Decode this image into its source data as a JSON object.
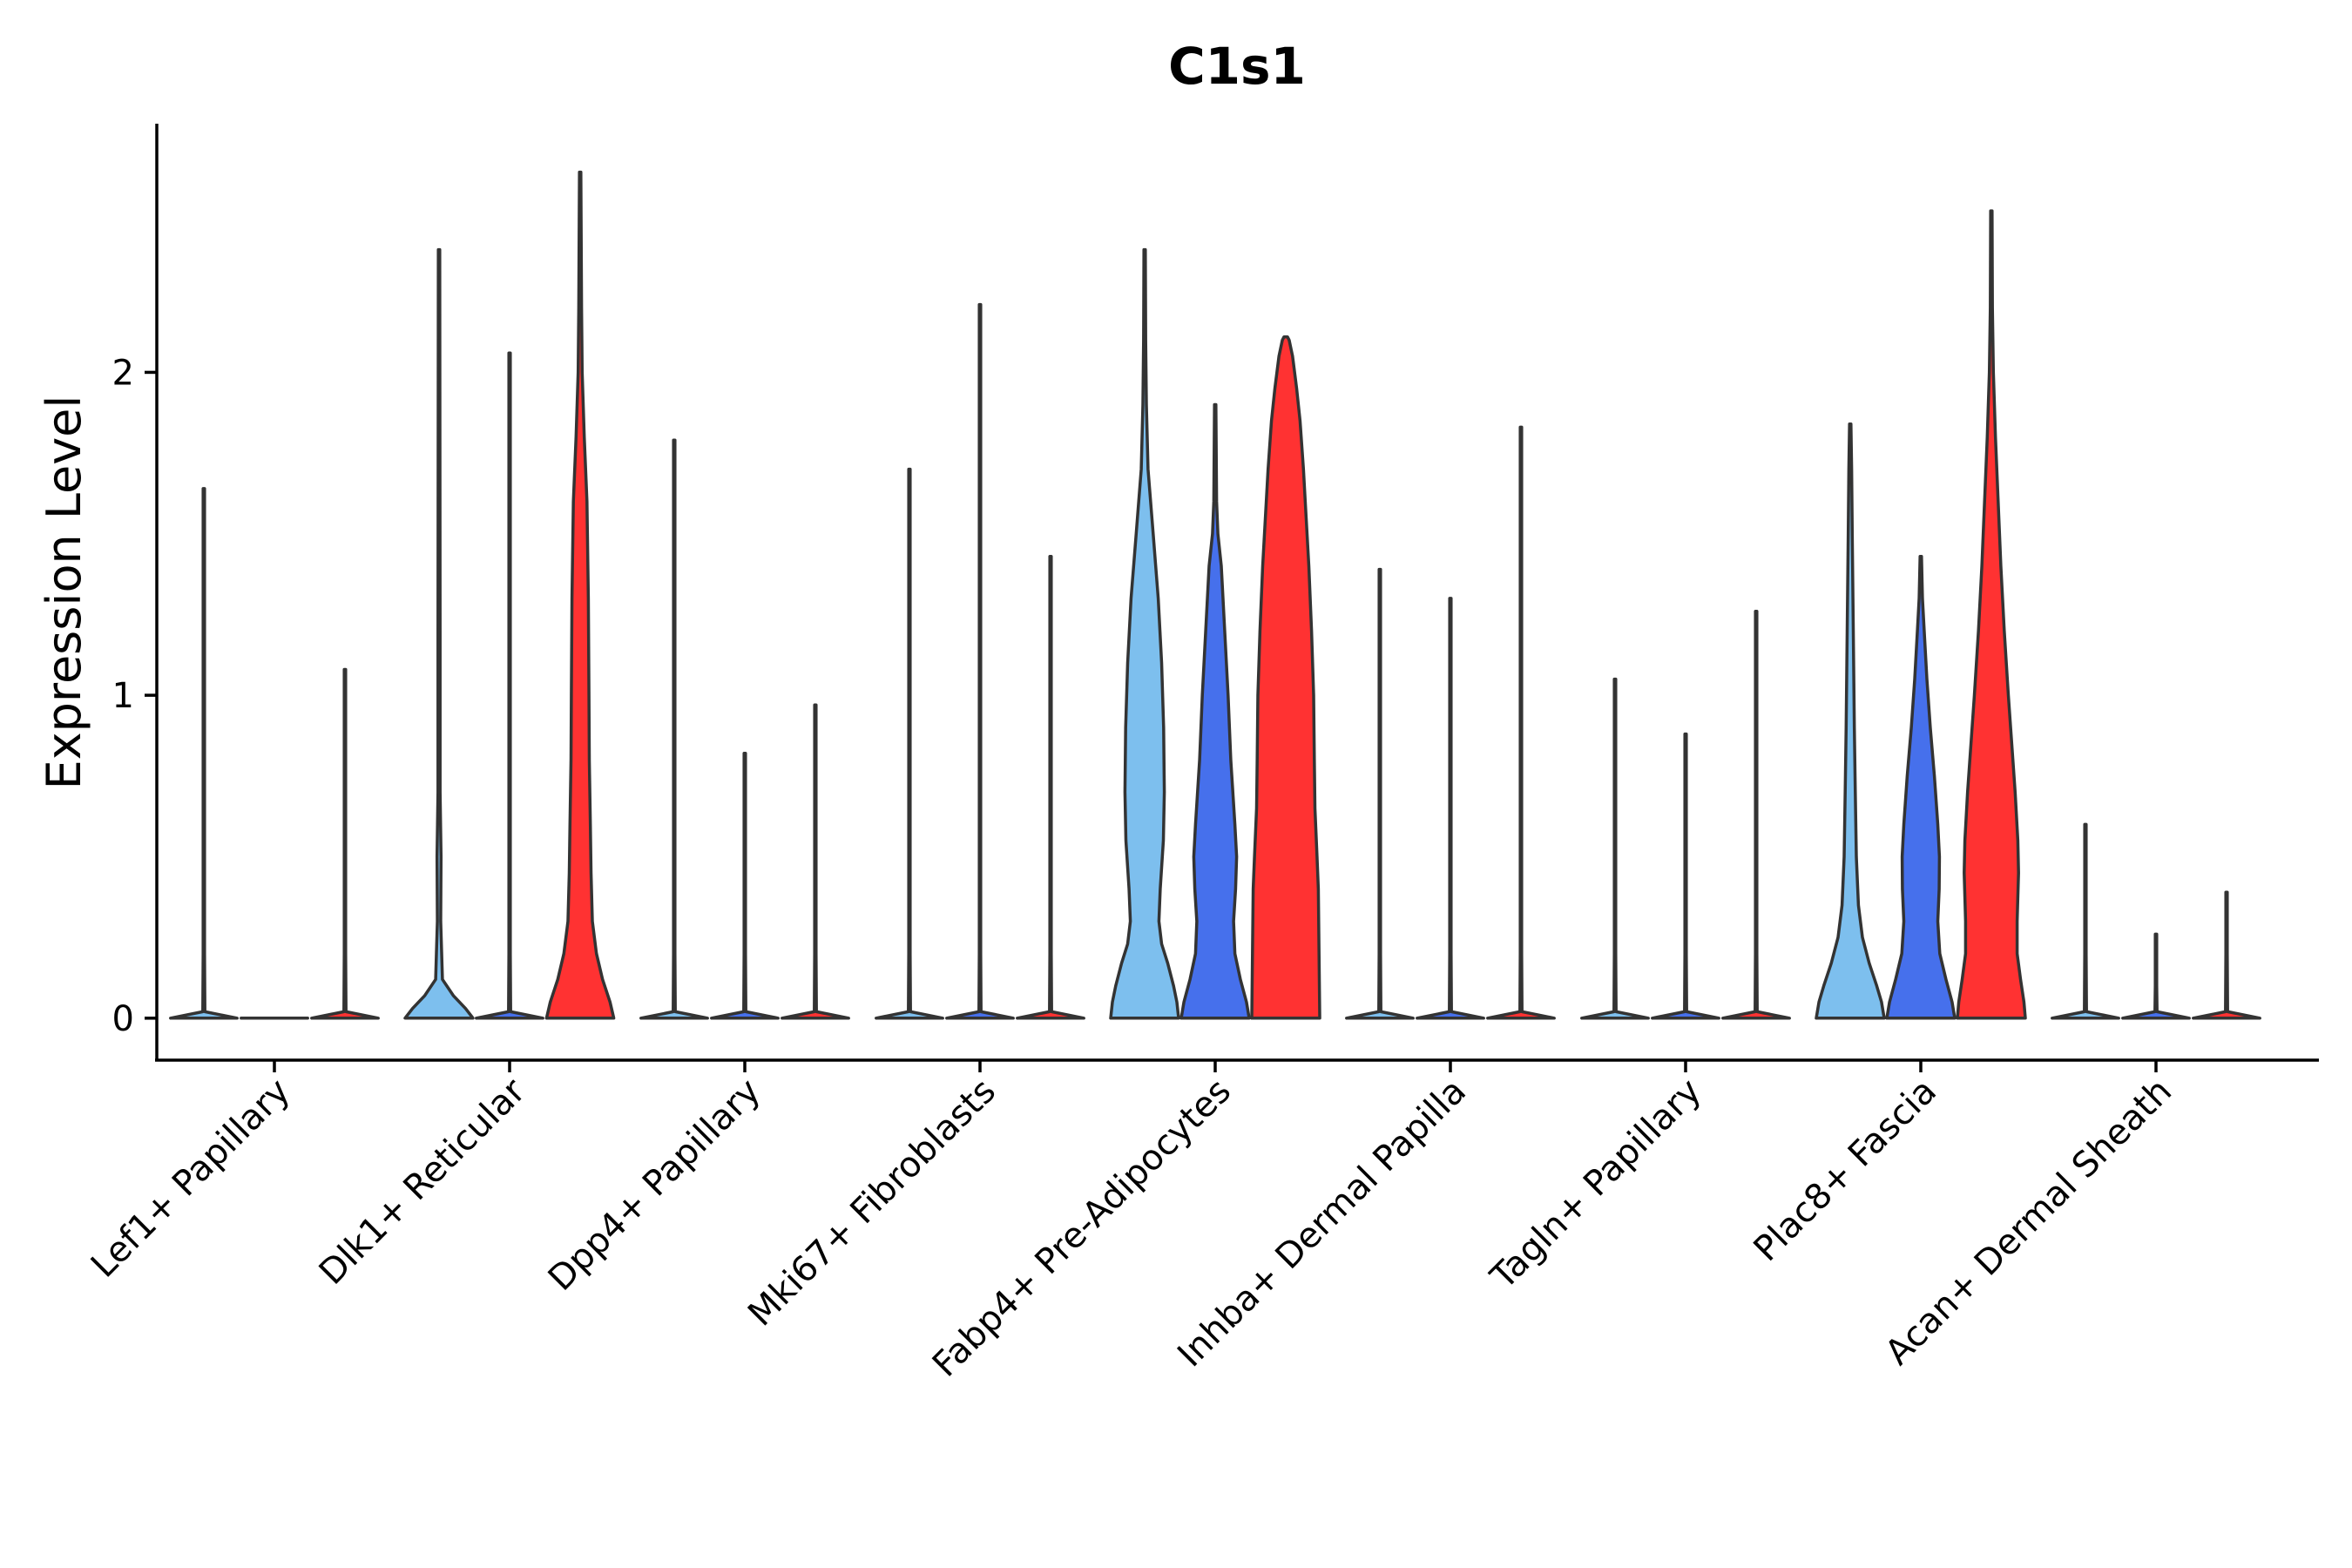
{
  "chart_data": {
    "type": "violin",
    "title": "C1s1",
    "xlabel": "",
    "ylabel": "Expression Level",
    "ylim": [
      -0.13,
      2.77
    ],
    "yticks": [
      0,
      1,
      2
    ],
    "legend": "none",
    "series_colors": [
      "#7dbfee",
      "#4670ec",
      "#ff3232"
    ],
    "categories": [
      "Lef1+ Papillary",
      "Dlk1+ Reticular",
      "Dpp4+ Papillary",
      "Mki67+ Fibroblasts",
      "Fabp4+ Pre-Adipocytes",
      "Inhba+ Dermal Papilla",
      "Tagln+ Papillary",
      "Plac8+ Fascia",
      "Acan+ Dermal Sheath"
    ],
    "groups": [
      {
        "category": "Lef1+ Papillary",
        "violins": [
          {
            "series": 0,
            "max": 1.64,
            "profile": [
              [
                0,
                0.98
              ],
              [
                0.02,
                0.03
              ],
              [
                0.2,
                0.02
              ],
              [
                1.64,
                0.02
              ]
            ]
          },
          {
            "series": 1,
            "max": 0.0,
            "profile": [
              [
                0,
                0.98
              ]
            ]
          },
          {
            "series": 2,
            "max": 1.08,
            "profile": [
              [
                0,
                0.98
              ],
              [
                0.02,
                0.03
              ],
              [
                0.2,
                0.02
              ],
              [
                1.08,
                0.02
              ]
            ]
          }
        ]
      },
      {
        "category": "Dlk1+ Reticular",
        "violins": [
          {
            "series": 0,
            "max": 2.38,
            "profile": [
              [
                0,
                1.0
              ],
              [
                0.03,
                0.78
              ],
              [
                0.07,
                0.42
              ],
              [
                0.12,
                0.1
              ],
              [
                0.3,
                0.05
              ],
              [
                0.5,
                0.06
              ],
              [
                0.7,
                0.03
              ],
              [
                1.2,
                0.03
              ],
              [
                2.38,
                0.02
              ]
            ]
          },
          {
            "series": 1,
            "max": 2.06,
            "profile": [
              [
                0,
                0.98
              ],
              [
                0.02,
                0.03
              ],
              [
                0.2,
                0.02
              ],
              [
                2.06,
                0.02
              ]
            ]
          },
          {
            "series": 2,
            "max": 2.62,
            "profile": [
              [
                0,
                0.99
              ],
              [
                0.05,
                0.88
              ],
              [
                0.12,
                0.66
              ],
              [
                0.2,
                0.48
              ],
              [
                0.3,
                0.36
              ],
              [
                0.45,
                0.32
              ],
              [
                0.6,
                0.3
              ],
              [
                0.8,
                0.27
              ],
              [
                1.0,
                0.26
              ],
              [
                1.3,
                0.24
              ],
              [
                1.6,
                0.2
              ],
              [
                1.8,
                0.12
              ],
              [
                2.0,
                0.06
              ],
              [
                2.2,
                0.04
              ],
              [
                2.62,
                0.02
              ]
            ]
          }
        ]
      },
      {
        "category": "Dpp4+ Papillary",
        "violins": [
          {
            "series": 0,
            "max": 1.79,
            "profile": [
              [
                0,
                0.98
              ],
              [
                0.02,
                0.03
              ],
              [
                0.2,
                0.02
              ],
              [
                1.79,
                0.02
              ]
            ]
          },
          {
            "series": 1,
            "max": 0.82,
            "profile": [
              [
                0,
                0.98
              ],
              [
                0.02,
                0.03
              ],
              [
                0.2,
                0.02
              ],
              [
                0.82,
                0.02
              ]
            ]
          },
          {
            "series": 2,
            "max": 0.97,
            "profile": [
              [
                0,
                0.98
              ],
              [
                0.02,
                0.03
              ],
              [
                0.2,
                0.02
              ],
              [
                0.97,
                0.02
              ]
            ]
          }
        ]
      },
      {
        "category": "Mki67+ Fibroblasts",
        "violins": [
          {
            "series": 0,
            "max": 1.7,
            "profile": [
              [
                0,
                0.98
              ],
              [
                0.02,
                0.03
              ],
              [
                0.2,
                0.02
              ],
              [
                1.7,
                0.02
              ]
            ]
          },
          {
            "series": 1,
            "max": 2.21,
            "profile": [
              [
                0,
                0.98
              ],
              [
                0.02,
                0.03
              ],
              [
                0.2,
                0.02
              ],
              [
                2.21,
                0.02
              ]
            ]
          },
          {
            "series": 2,
            "max": 1.43,
            "profile": [
              [
                0,
                0.98
              ],
              [
                0.02,
                0.03
              ],
              [
                0.2,
                0.02
              ],
              [
                1.43,
                0.02
              ]
            ]
          }
        ]
      },
      {
        "category": "Fabp4+ Pre-Adipocytes",
        "violins": [
          {
            "series": 0,
            "max": 2.38,
            "profile": [
              [
                0,
                1.0
              ],
              [
                0.05,
                0.95
              ],
              [
                0.1,
                0.85
              ],
              [
                0.17,
                0.68
              ],
              [
                0.23,
                0.5
              ],
              [
                0.3,
                0.42
              ],
              [
                0.4,
                0.46
              ],
              [
                0.55,
                0.55
              ],
              [
                0.7,
                0.58
              ],
              [
                0.9,
                0.56
              ],
              [
                1.1,
                0.5
              ],
              [
                1.3,
                0.4
              ],
              [
                1.5,
                0.25
              ],
              [
                1.7,
                0.1
              ],
              [
                1.9,
                0.05
              ],
              [
                2.1,
                0.03
              ],
              [
                2.38,
                0.02
              ]
            ]
          },
          {
            "series": 1,
            "max": 1.9,
            "profile": [
              [
                0,
                1.0
              ],
              [
                0.05,
                0.92
              ],
              [
                0.12,
                0.74
              ],
              [
                0.2,
                0.58
              ],
              [
                0.3,
                0.54
              ],
              [
                0.4,
                0.6
              ],
              [
                0.5,
                0.63
              ],
              [
                0.6,
                0.58
              ],
              [
                0.8,
                0.46
              ],
              [
                1.0,
                0.38
              ],
              [
                1.2,
                0.28
              ],
              [
                1.4,
                0.18
              ],
              [
                1.5,
                0.08
              ],
              [
                1.6,
                0.04
              ],
              [
                1.9,
                0.02
              ]
            ]
          },
          {
            "series": 2,
            "max": 2.11,
            "profile": [
              [
                0,
                1.0
              ],
              [
                0.2,
                0.98
              ],
              [
                0.4,
                0.96
              ],
              [
                0.5,
                0.92
              ],
              [
                0.65,
                0.86
              ],
              [
                0.8,
                0.84
              ],
              [
                1.0,
                0.82
              ],
              [
                1.2,
                0.76
              ],
              [
                1.4,
                0.68
              ],
              [
                1.55,
                0.6
              ],
              [
                1.7,
                0.52
              ],
              [
                1.85,
                0.42
              ],
              [
                1.95,
                0.32
              ],
              [
                2.05,
                0.2
              ],
              [
                2.1,
                0.1
              ],
              [
                2.11,
                0.05
              ]
            ]
          }
        ]
      },
      {
        "category": "Inhba+ Dermal Papilla",
        "violins": [
          {
            "series": 0,
            "max": 1.39,
            "profile": [
              [
                0,
                0.98
              ],
              [
                0.02,
                0.03
              ],
              [
                0.2,
                0.02
              ],
              [
                1.39,
                0.02
              ]
            ]
          },
          {
            "series": 1,
            "max": 1.3,
            "profile": [
              [
                0,
                0.98
              ],
              [
                0.02,
                0.03
              ],
              [
                0.2,
                0.02
              ],
              [
                1.3,
                0.02
              ]
            ]
          },
          {
            "series": 2,
            "max": 1.83,
            "profile": [
              [
                0,
                0.98
              ],
              [
                0.02,
                0.03
              ],
              [
                0.2,
                0.02
              ],
              [
                1.83,
                0.02
              ]
            ]
          }
        ]
      },
      {
        "category": "Tagln+ Papillary",
        "violins": [
          {
            "series": 0,
            "max": 1.05,
            "profile": [
              [
                0,
                0.98
              ],
              [
                0.02,
                0.03
              ],
              [
                0.2,
                0.02
              ],
              [
                1.05,
                0.02
              ]
            ]
          },
          {
            "series": 1,
            "max": 0.88,
            "profile": [
              [
                0,
                0.98
              ],
              [
                0.02,
                0.03
              ],
              [
                0.2,
                0.02
              ],
              [
                0.88,
                0.02
              ]
            ]
          },
          {
            "series": 2,
            "max": 1.26,
            "profile": [
              [
                0,
                0.98
              ],
              [
                0.02,
                0.03
              ],
              [
                0.2,
                0.02
              ],
              [
                1.26,
                0.02
              ]
            ]
          }
        ]
      },
      {
        "category": "Plac8+ Fascia",
        "violins": [
          {
            "series": 0,
            "max": 1.84,
            "profile": [
              [
                0,
                1.0
              ],
              [
                0.05,
                0.92
              ],
              [
                0.1,
                0.78
              ],
              [
                0.17,
                0.56
              ],
              [
                0.25,
                0.36
              ],
              [
                0.35,
                0.24
              ],
              [
                0.5,
                0.18
              ],
              [
                0.7,
                0.15
              ],
              [
                0.9,
                0.12
              ],
              [
                1.1,
                0.1
              ],
              [
                1.3,
                0.08
              ],
              [
                1.5,
                0.06
              ],
              [
                1.7,
                0.04
              ],
              [
                1.84,
                0.02
              ]
            ]
          },
          {
            "series": 1,
            "max": 1.43,
            "profile": [
              [
                0,
                1.0
              ],
              [
                0.05,
                0.92
              ],
              [
                0.12,
                0.74
              ],
              [
                0.2,
                0.56
              ],
              [
                0.3,
                0.5
              ],
              [
                0.4,
                0.54
              ],
              [
                0.5,
                0.55
              ],
              [
                0.6,
                0.5
              ],
              [
                0.75,
                0.4
              ],
              [
                0.9,
                0.28
              ],
              [
                1.05,
                0.18
              ],
              [
                1.2,
                0.1
              ],
              [
                1.3,
                0.05
              ],
              [
                1.43,
                0.02
              ]
            ]
          },
          {
            "series": 2,
            "max": 2.5,
            "profile": [
              [
                0,
                1.0
              ],
              [
                0.05,
                0.96
              ],
              [
                0.12,
                0.86
              ],
              [
                0.2,
                0.76
              ],
              [
                0.3,
                0.76
              ],
              [
                0.45,
                0.8
              ],
              [
                0.55,
                0.78
              ],
              [
                0.7,
                0.7
              ],
              [
                0.85,
                0.6
              ],
              [
                1.0,
                0.5
              ],
              [
                1.2,
                0.38
              ],
              [
                1.4,
                0.28
              ],
              [
                1.6,
                0.2
              ],
              [
                1.8,
                0.12
              ],
              [
                2.0,
                0.06
              ],
              [
                2.2,
                0.03
              ],
              [
                2.5,
                0.02
              ]
            ]
          }
        ]
      },
      {
        "category": "Acan+ Dermal Sheath",
        "violins": [
          {
            "series": 0,
            "max": 0.6,
            "profile": [
              [
                0,
                0.98
              ],
              [
                0.02,
                0.03
              ],
              [
                0.2,
                0.02
              ],
              [
                0.6,
                0.02
              ]
            ]
          },
          {
            "series": 1,
            "max": 0.26,
            "profile": [
              [
                0,
                0.98
              ],
              [
                0.02,
                0.03
              ],
              [
                0.1,
                0.02
              ],
              [
                0.26,
                0.02
              ]
            ]
          },
          {
            "series": 2,
            "max": 0.39,
            "profile": [
              [
                0,
                0.98
              ],
              [
                0.02,
                0.03
              ],
              [
                0.2,
                0.02
              ],
              [
                0.39,
                0.02
              ]
            ]
          }
        ]
      }
    ]
  }
}
